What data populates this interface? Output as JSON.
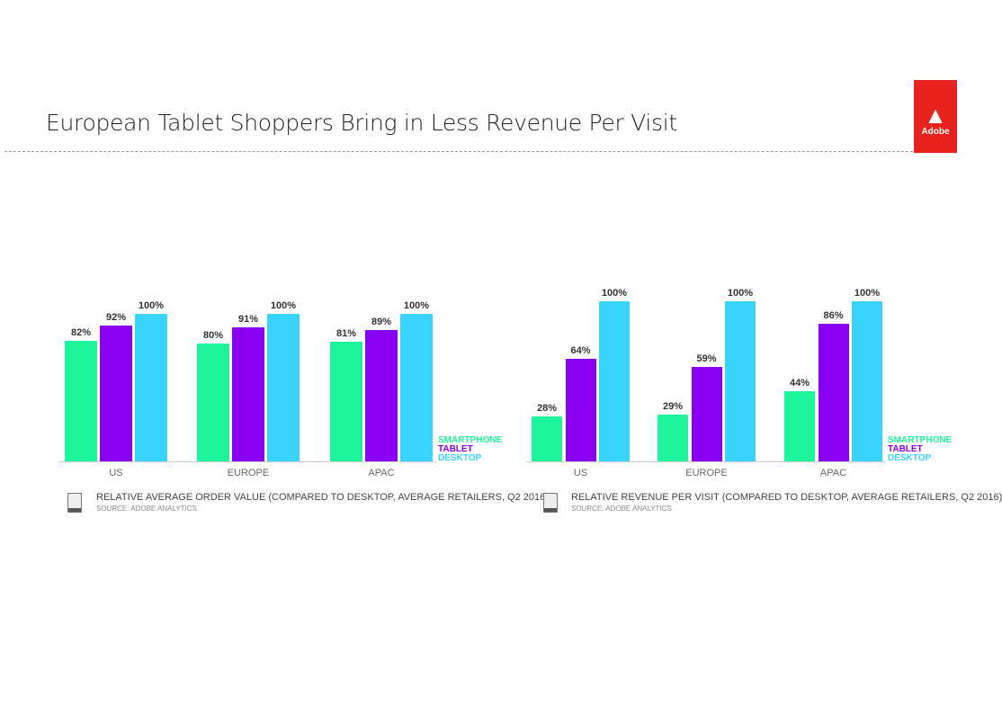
{
  "title": "European Tablet Shoppers Bring in Less Revenue Per Visit",
  "logo": {
    "glyph": "A",
    "text": "Adobe"
  },
  "colors": {
    "smartphone": "#1ef59a",
    "tablet": "#8a00f0",
    "desktop": "#38d4fb"
  },
  "chart_data": [
    {
      "type": "bar",
      "categories": [
        "US",
        "EUROPE",
        "APAC"
      ],
      "series": [
        {
          "name": "SMARTPHONE",
          "values": [
            82,
            80,
            81
          ]
        },
        {
          "name": "TABLET",
          "values": [
            92,
            91,
            89
          ]
        },
        {
          "name": "DESKTOP",
          "values": [
            100,
            100,
            100
          ]
        }
      ],
      "title": "RELATIVE AVERAGE ORDER VALUE (COMPARED TO DESKTOP, AVERAGE RETAILERS, Q2 2016)",
      "source": "SOURCE: ADOBE ANALYTICS",
      "ylim": [
        0,
        100
      ],
      "unit": "%",
      "legend": "bottom-right",
      "grid": false
    },
    {
      "type": "bar",
      "categories": [
        "US",
        "EUROPE",
        "APAC"
      ],
      "series": [
        {
          "name": "SMARTPHONE",
          "values": [
            28,
            29,
            44
          ]
        },
        {
          "name": "TABLET",
          "values": [
            64,
            59,
            86
          ]
        },
        {
          "name": "DESKTOP",
          "values": [
            100,
            100,
            100
          ]
        }
      ],
      "title": "RELATIVE REVENUE PER VISIT (COMPARED TO DESKTOP, AVERAGE RETAILERS, Q2 2016)",
      "source": "SOURCE: ADOBE ANALYTICS",
      "ylim": [
        0,
        100
      ],
      "unit": "%",
      "legend": "bottom-right",
      "grid": false
    }
  ]
}
